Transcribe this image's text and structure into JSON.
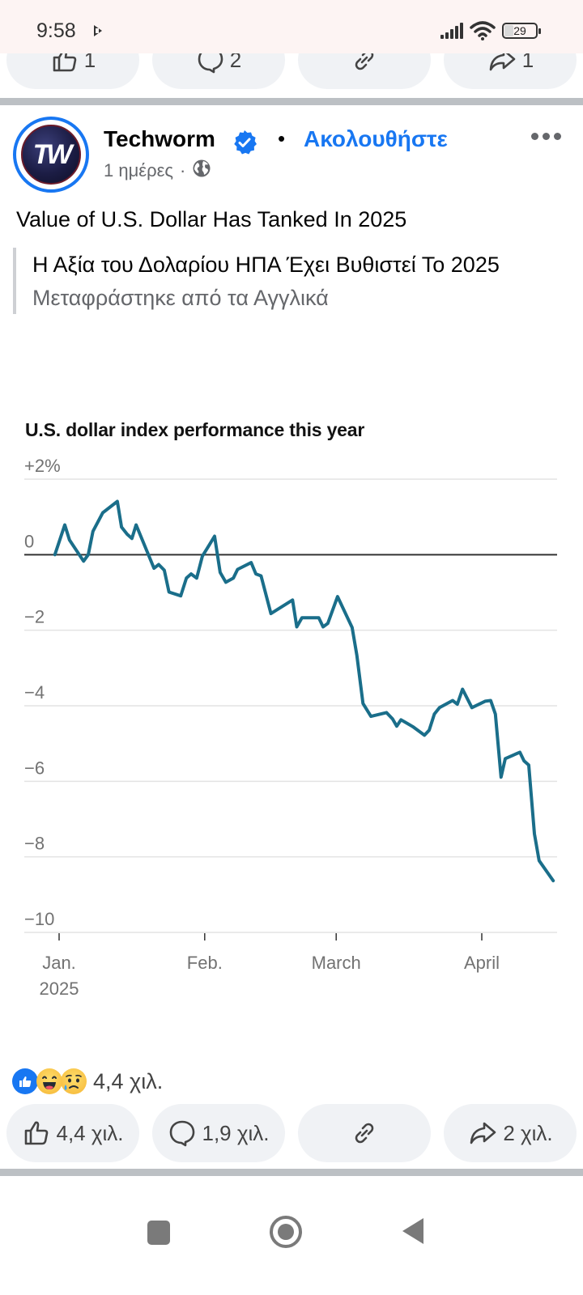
{
  "status_bar": {
    "time": "9:58",
    "battery": "29",
    "icons": [
      "play-store-icon",
      "signal-icon",
      "wifi-icon",
      "battery-icon"
    ]
  },
  "previous_post_actions": {
    "like_count": "1",
    "comment_count": "2",
    "share_count": "1"
  },
  "post": {
    "page_name": "Techworm",
    "avatar_initials": "TW",
    "verified": true,
    "separator": "•",
    "follow_label": "Ακολουθήστε",
    "time_ago": "1 ημέρες",
    "meta_separator": "·",
    "privacy": "public",
    "text": "Value of U.S. Dollar Has Tanked In 2025",
    "translation": {
      "text": "Η Αξία του Δολαρίου ΗΠΑ Έχει Βυθιστεί Το 2025",
      "note": "Μεταφράστηκε από τα Αγγλικά"
    },
    "reactions": {
      "types": [
        "like",
        "haha",
        "sad"
      ],
      "count": "4,4 χιλ."
    },
    "actions": {
      "like_count": "4,4 χιλ.",
      "comment_count": "1,9 χιλ.",
      "share_count": "2 χιλ."
    }
  },
  "colors": {
    "accent": "#1877f2",
    "line": "#1a6e8a",
    "zero_line": "#333333",
    "grid": "#e3e3e3"
  },
  "chart_data": {
    "type": "line",
    "title": "U.S. dollar index performance this year",
    "xlabel": "",
    "ylabel": "",
    "y_unit": "%",
    "ylim": [
      -10,
      2
    ],
    "yticks": [
      2,
      0,
      -2,
      -4,
      -6,
      -8,
      -10
    ],
    "ytick_labels": [
      "+2%",
      "0",
      "−2",
      "−4",
      "−6",
      "−8",
      "−10"
    ],
    "x_unit": "days since Jan. 1, 2025",
    "xlim": [
      -2,
      106
    ],
    "xticks": [
      0,
      31,
      59,
      90
    ],
    "xtick_labels": [
      "Jan.",
      "Feb.",
      "March",
      "April"
    ],
    "xtick_sublabels": [
      "2025",
      "",
      "",
      ""
    ],
    "grid": true,
    "legend": "none",
    "series": [
      {
        "name": "U.S. dollar index",
        "x": [
          -0.9,
          1.2,
          2.2,
          5.2,
          6.2,
          7.2,
          9.3,
          12.4,
          13.3,
          14.5,
          15.5,
          16.4,
          20.2,
          21.2,
          22.4,
          23.4,
          25.9,
          27.1,
          28.1,
          29.3,
          30.5,
          31.9,
          33.1,
          34.3,
          35.5,
          37.1,
          38.0,
          40.9,
          41.9,
          43.0,
          45.1,
          49.7,
          50.6,
          51.7,
          55.3,
          56.2,
          57.2,
          59.3,
          62.4,
          63.4,
          64.7,
          66.4,
          69.7,
          71.0,
          71.9,
          72.8,
          75.4,
          77.8,
          78.8,
          79.9,
          81.0,
          83.8,
          84.8,
          85.9,
          87.9,
          90.7,
          91.9,
          92.9,
          94.1,
          95.0,
          98.1,
          99.0,
          100.0,
          101.2,
          102.2,
          105.2
        ],
        "values": [
          0.0,
          0.79,
          0.39,
          -0.17,
          0.0,
          0.62,
          1.11,
          1.41,
          0.73,
          0.54,
          0.43,
          0.79,
          -0.36,
          -0.26,
          -0.41,
          -0.99,
          -1.09,
          -0.62,
          -0.51,
          -0.62,
          -0.04,
          0.24,
          0.49,
          -0.47,
          -0.73,
          -0.62,
          -0.39,
          -0.21,
          -0.51,
          -0.56,
          -1.56,
          -1.2,
          -1.91,
          -1.67,
          -1.67,
          -1.91,
          -1.82,
          -1.11,
          -1.93,
          -2.66,
          -3.94,
          -4.28,
          -4.18,
          -4.35,
          -4.54,
          -4.37,
          -4.56,
          -4.78,
          -4.65,
          -4.22,
          -4.05,
          -3.86,
          -3.96,
          -3.56,
          -4.05,
          -3.88,
          -3.86,
          -4.22,
          -5.89,
          -5.4,
          -5.23,
          -5.46,
          -5.57,
          -7.39,
          -8.1,
          -8.63
        ]
      }
    ]
  },
  "nav_bar": {
    "buttons": [
      "recents",
      "home",
      "back"
    ]
  }
}
